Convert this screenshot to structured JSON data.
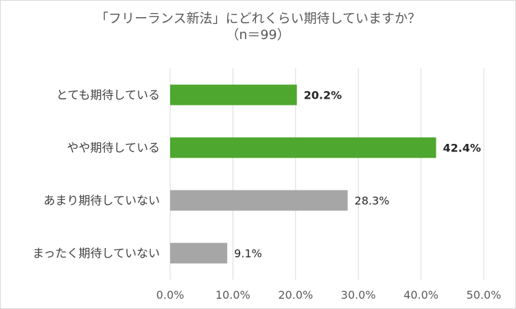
{
  "chart_data": {
    "type": "bar",
    "orientation": "horizontal",
    "title": "「フリーランス新法」にどれくらい期待していますか？",
    "subtitle": "（n＝99）",
    "categories": [
      "とても期待している",
      "やや期待している",
      "あまり期待していない",
      "まったく期待していない"
    ],
    "values": [
      20.2,
      42.4,
      28.3,
      9.1
    ],
    "value_labels": [
      "20.2%",
      "42.4%",
      "28.3%",
      "9.1%"
    ],
    "bar_colors": [
      "#4ea72e",
      "#4ea72e",
      "#a6a6a6",
      "#a6a6a6"
    ],
    "label_bold": [
      true,
      true,
      false,
      false
    ],
    "xlim": [
      0,
      50
    ],
    "x_ticks": [
      "0.0%",
      "10.0%",
      "20.0%",
      "30.0%",
      "40.0%",
      "50.0%"
    ],
    "grid": true,
    "legend": "none",
    "xlabel": "",
    "ylabel": ""
  }
}
